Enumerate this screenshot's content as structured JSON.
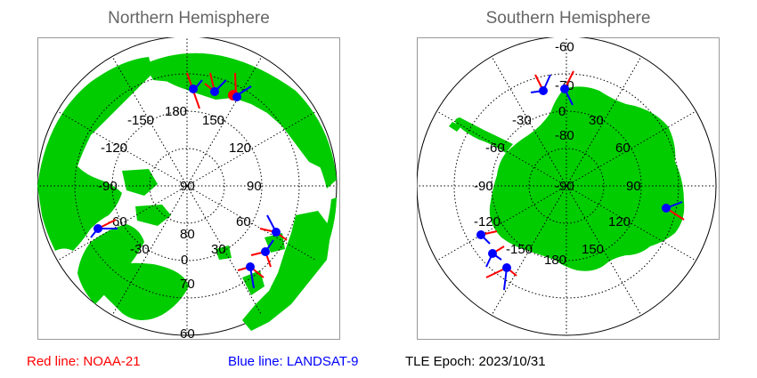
{
  "panels": {
    "north": {
      "title": "Northern Hemisphere",
      "longitude_labels": [
        "180",
        "150",
        "120",
        "90",
        "60",
        "30",
        "0",
        "-30",
        "-60",
        "-90",
        "-120",
        "-150"
      ],
      "latitude_labels": [
        "90",
        "80",
        "70",
        "60"
      ]
    },
    "south": {
      "title": "Southern Hemisphere",
      "longitude_labels": [
        "0",
        "30",
        "60",
        "90",
        "120",
        "150",
        "180",
        "-150",
        "-120",
        "-90",
        "-60",
        "-30"
      ],
      "latitude_labels": [
        "-90",
        "-80",
        "-70",
        "-60"
      ]
    }
  },
  "legend": {
    "red_line": "Red line: NOAA-21",
    "blue_line": "Blue line: LANDSAT-9",
    "epoch": "TLE Epoch: 2023/10/31"
  },
  "colors": {
    "land": "#00cc00",
    "ocean": "#ffffff",
    "grid": "#000000",
    "title": "#666666",
    "red_line": "#ff0000",
    "blue_line": "#0000ff",
    "station": "#0000ff"
  }
}
